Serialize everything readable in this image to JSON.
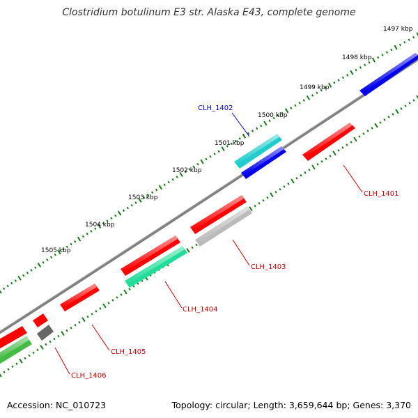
{
  "title": "Clostridium botulinum E3 str. Alaska E43, complete genome",
  "footer": {
    "accession": "Accession: NC_010723",
    "info": "Topology: circular; Length: 3,659,644 bp; Genes: 3,370"
  },
  "map": {
    "ticks": [
      {
        "label": "1497 kbp"
      },
      {
        "label": "1498 kbp"
      },
      {
        "label": "1499 kbp"
      },
      {
        "label": "1500 kbp"
      },
      {
        "label": "1501 kbp"
      },
      {
        "label": "1502 kbp"
      },
      {
        "label": "1503 kbp"
      },
      {
        "label": "1504 kbp"
      },
      {
        "label": "1505 kbp"
      }
    ],
    "genes": [
      {
        "name": "CLH_1401",
        "label_color": "#cc0000"
      },
      {
        "name": "CLH_1402",
        "label_color": "#0000cc"
      },
      {
        "name": "CLH_1403",
        "label_color": "#cc0000"
      },
      {
        "name": "CLH_1404",
        "label_color": "#cc0000"
      },
      {
        "name": "CLH_1405",
        "label_color": "#cc0000"
      },
      {
        "name": "CLH_1406",
        "label_color": "#cc0000"
      }
    ],
    "colors": {
      "backbone": "#808080",
      "ticks": "#1a7a1a",
      "red": "#ff0000",
      "blue": "#0000ee",
      "cyan": "#22cccc",
      "teal": "#22dd99",
      "gray": "#bbbbbb",
      "darkgray": "#666666",
      "green": "#44bb44"
    }
  }
}
